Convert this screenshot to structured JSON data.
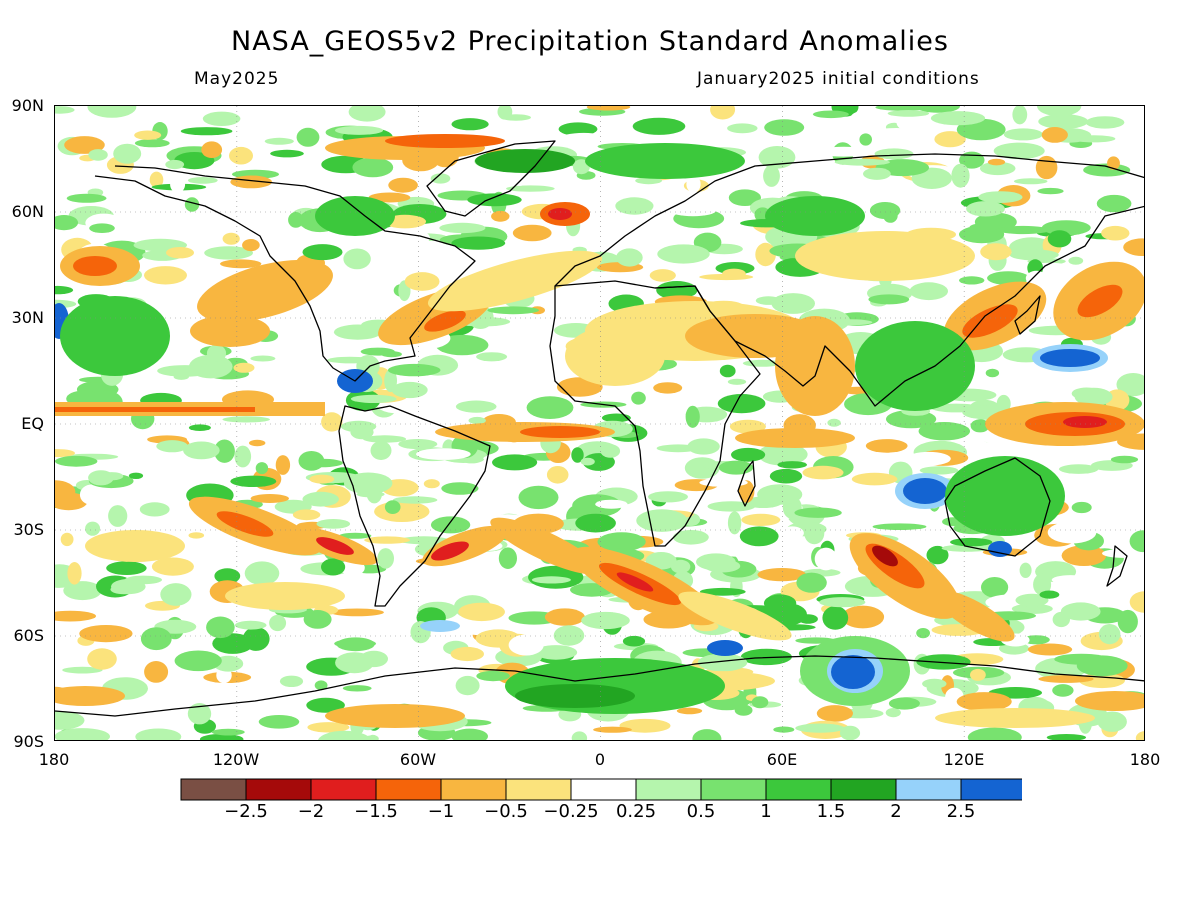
{
  "title": "NASA_GEOS5v2 Precipitation Standard Anomalies",
  "subtitle_left": "May2025",
  "subtitle_right": "January2025 initial conditions",
  "lat_labels": [
    "90N",
    "60N",
    "30N",
    "EQ",
    "30S",
    "60S",
    "90S"
  ],
  "lon_labels": [
    "180",
    "120W",
    "60W",
    "0",
    "60E",
    "120E",
    "180"
  ],
  "colorbar": {
    "colors": [
      "#7a4f44",
      "#a50a0a",
      "#e01e1e",
      "#f5640a",
      "#f8b640",
      "#fbe37c",
      "#ffffff",
      "#b5f5ad",
      "#78e26f",
      "#3cc83c",
      "#22a522",
      "#96d2fa",
      "#1464d2"
    ],
    "labels": [
      "−2.5",
      "−2",
      "−1.5",
      "−1",
      "−0.5",
      "−0.25",
      "0.25",
      "0.5",
      "1",
      "1.5",
      "2",
      "2.5"
    ]
  },
  "colors": {
    "coastline": "#000000",
    "grid": "#888888"
  }
}
